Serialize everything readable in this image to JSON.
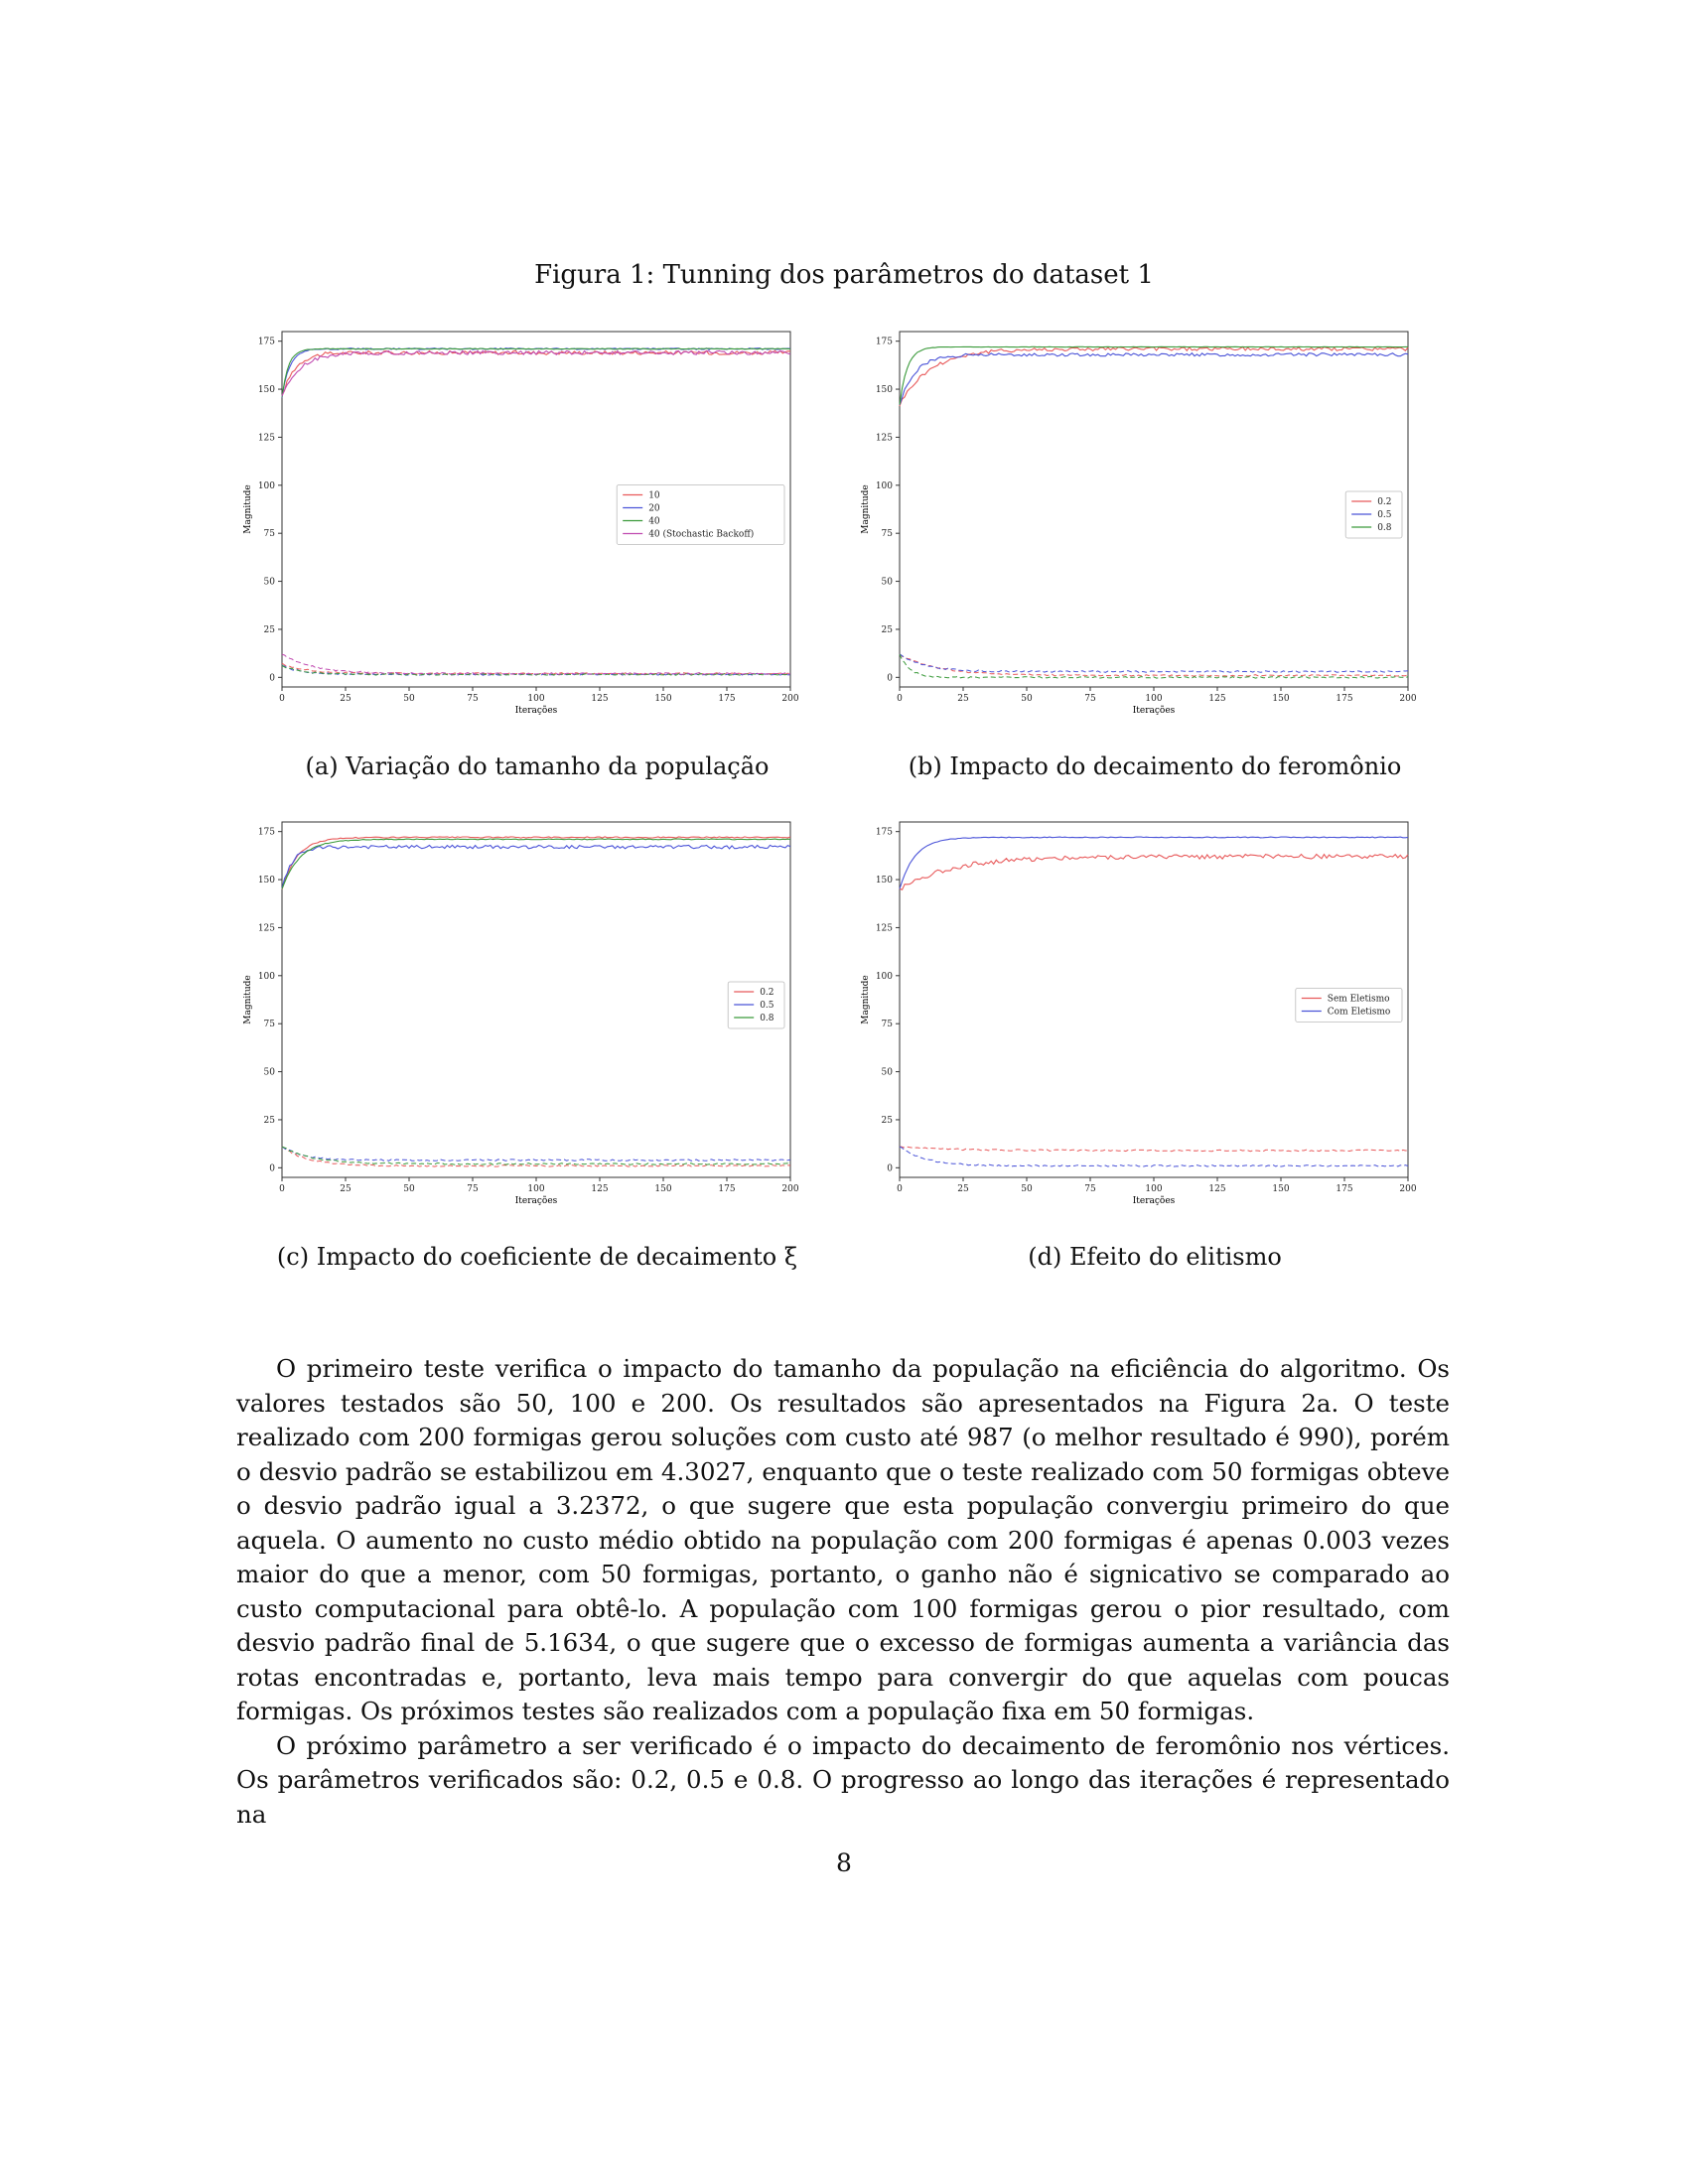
{
  "figure": {
    "title": "Figura 1: Tunning dos parâmetros do dataset 1",
    "subfigures": [
      {
        "caption": "(a) Variação do tamanho da população"
      },
      {
        "caption": "(b) Impacto do decaimento do feromônio"
      },
      {
        "caption": "(c) Impacto do coeficiente de decaimento ξ"
      },
      {
        "caption": "(d) Efeito do elitismo"
      }
    ]
  },
  "chart_data": [
    {
      "type": "line",
      "xlabel": "Iterações",
      "ylabel": "Magnitude",
      "xlim": [
        0,
        200
      ],
      "ylim": [
        -5,
        180
      ],
      "xticks": [
        0,
        25,
        50,
        75,
        100,
        125,
        150,
        175,
        200
      ],
      "yticks": [
        0,
        25,
        50,
        75,
        100,
        125,
        150,
        175
      ],
      "legend_position": "center-right",
      "colors": [
        "#e8595a",
        "#4a53d8",
        "#3a9a3a",
        "#c04ab0"
      ],
      "series": [
        {
          "name": "10",
          "values": {
            "start": 146,
            "plateau": 169,
            "tau": 5,
            "noise": 1
          },
          "deviation": {
            "start": 7,
            "end": 2,
            "tau": 10
          }
        },
        {
          "name": "20",
          "values": {
            "start": 146,
            "plateau": 171,
            "tau": 3,
            "noise": 0.4
          },
          "deviation": {
            "start": 6,
            "end": 1.5,
            "tau": 8
          }
        },
        {
          "name": "40",
          "values": {
            "start": 146,
            "plateau": 171,
            "tau": 2.5,
            "noise": 0.2
          },
          "deviation": {
            "start": 6,
            "end": 1.5,
            "tau": 8
          }
        },
        {
          "name": "40 (Stochastic Backoff)",
          "values": {
            "start": 146,
            "plateau": 169,
            "tau": 7,
            "noise": 1
          },
          "deviation": {
            "start": 12,
            "end": 2,
            "tau": 12
          }
        }
      ]
    },
    {
      "type": "line",
      "xlabel": "Iterações",
      "ylabel": "Magnitude",
      "xlim": [
        0,
        200
      ],
      "ylim": [
        -5,
        180
      ],
      "xticks": [
        0,
        25,
        50,
        75,
        100,
        125,
        150,
        175,
        200
      ],
      "yticks": [
        0,
        25,
        50,
        75,
        100,
        125,
        150,
        175
      ],
      "legend_position": "center-right",
      "colors": [
        "#e8595a",
        "#4a53d8",
        "#3a9a3a"
      ],
      "series": [
        {
          "name": "0.2",
          "values": {
            "start": 142,
            "plateau": 171,
            "tau": 12,
            "noise": 1
          },
          "deviation": {
            "start": 12,
            "end": 1,
            "tau": 15
          }
        },
        {
          "name": "0.5",
          "values": {
            "start": 142,
            "plateau": 168,
            "tau": 6,
            "noise": 0.8
          },
          "deviation": {
            "start": 12,
            "end": 3,
            "tau": 10
          }
        },
        {
          "name": "0.8",
          "values": {
            "start": 142,
            "plateau": 172,
            "tau": 3,
            "noise": 0.1
          },
          "deviation": {
            "start": 12,
            "end": 0,
            "tau": 4
          }
        }
      ]
    },
    {
      "type": "line",
      "xlabel": "Iterações",
      "ylabel": "Magnitude",
      "xlim": [
        0,
        200
      ],
      "ylim": [
        -5,
        180
      ],
      "xticks": [
        0,
        25,
        50,
        75,
        100,
        125,
        150,
        175,
        200
      ],
      "yticks": [
        0,
        25,
        50,
        75,
        100,
        125,
        150,
        175
      ],
      "legend_position": "center-right",
      "colors": [
        "#e8595a",
        "#4a53d8",
        "#3a9a3a"
      ],
      "series": [
        {
          "name": "0.2",
          "values": {
            "start": 145,
            "plateau": 172,
            "tau": 6,
            "noise": 0.3
          },
          "deviation": {
            "start": 11,
            "end": 1,
            "tau": 10
          }
        },
        {
          "name": "0.5",
          "values": {
            "start": 145,
            "plateau": 167,
            "tau": 4,
            "noise": 0.9
          },
          "deviation": {
            "start": 11,
            "end": 4,
            "tau": 8
          }
        },
        {
          "name": "0.8",
          "values": {
            "start": 145,
            "plateau": 171,
            "tau": 7,
            "noise": 0.2
          },
          "deviation": {
            "start": 11,
            "end": 2,
            "tau": 12
          }
        }
      ]
    },
    {
      "type": "line",
      "xlabel": "Iterações",
      "ylabel": "Magnitude",
      "xlim": [
        0,
        200
      ],
      "ylim": [
        -5,
        180
      ],
      "xticks": [
        0,
        25,
        50,
        75,
        100,
        125,
        150,
        175,
        200
      ],
      "yticks": [
        0,
        25,
        50,
        75,
        100,
        125,
        150,
        175
      ],
      "legend_position": "center-right",
      "colors": [
        "#e8595a",
        "#4a53d8"
      ],
      "series": [
        {
          "name": "Sem Eletismo",
          "values": {
            "start": 145,
            "plateau": 162,
            "tau": 20,
            "noise": 1.2
          },
          "deviation": {
            "start": 11,
            "end": 9,
            "tau": 20
          }
        },
        {
          "name": "Com Eletismo",
          "values": {
            "start": 145,
            "plateau": 172,
            "tau": 6,
            "noise": 0.2
          },
          "deviation": {
            "start": 11,
            "end": 1,
            "tau": 10
          }
        }
      ]
    }
  ],
  "body": {
    "p1": "O primeiro teste verifica o impacto do tamanho da população na eficiência do algoritmo. Os valores testados são 50, 100 e 200. Os resultados são apresentados na Figura 2a. O teste realizado com 200 formigas gerou soluções com custo até 987 (o melhor resultado é 990), porém o desvio padrão se estabilizou em 4.3027, enquanto que o teste realizado com 50 formigas obteve o desvio padrão igual a 3.2372, o que sugere que esta população convergiu primeiro do que aquela. O aumento no custo médio obtido na população com 200 formigas é apenas 0.003 vezes maior do que a menor, com 50 formigas, portanto, o ganho não é signicativo se comparado ao custo computacional para obtê-lo. A população com 100 formigas gerou o pior resultado, com desvio padrão final de 5.1634, o que sugere que o excesso de formigas aumenta a variância das rotas encontradas e, portanto, leva mais tempo para convergir do que aquelas com poucas formigas. Os próximos testes são realizados com a população fixa em 50 formigas.",
    "p2": "O próximo parâmetro a ser verificado é o impacto do decaimento de feromônio nos vértices. Os parâmetros verificados são: 0.2, 0.5 e 0.8. O progresso ao longo das iterações é representado na"
  },
  "page_number": "8"
}
